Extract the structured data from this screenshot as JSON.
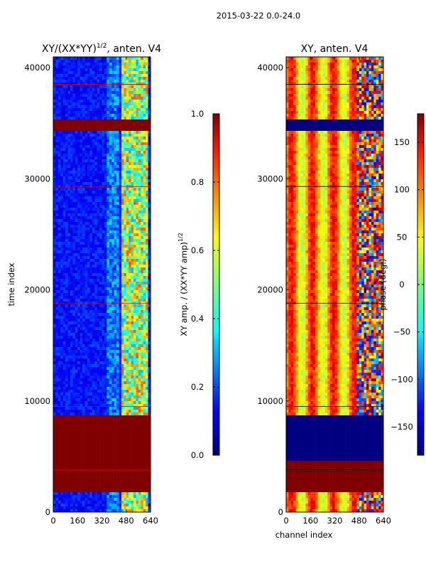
{
  "suptitle": "2015-03-22 0.0-24.0",
  "chart_data": [
    {
      "type": "heatmap",
      "id": "amp",
      "title": "XY/(XX*YY)",
      "title_sup": "1/2",
      "title_suffix": ", anten. V4",
      "xlabel": "",
      "ylabel": "time index",
      "xlim": [
        0,
        640
      ],
      "ylim": [
        0,
        40960
      ],
      "xticks": [
        0,
        160,
        320,
        480,
        640
      ],
      "yticks": [
        0,
        10000,
        20000,
        30000,
        40000
      ],
      "flagged_rows": [
        [
          35300,
          34200
        ],
        [
          8600,
          1700
        ]
      ],
      "description": "channel vs time amplitude ratio; mostly low (~0.1) with higher values (0.5-0.8) in channels 440-640; fully flagged rows show 1.0",
      "colorbar": {
        "label": "XY amp. / (XX*YY amp)",
        "label_sup": "1/2",
        "range": [
          0.0,
          1.0
        ],
        "ticks": [
          "0.0",
          "0.2",
          "0.4",
          "0.6",
          "0.8",
          "1.0"
        ],
        "tick_values": [
          0.0,
          0.2,
          0.4,
          0.6,
          0.8,
          1.0
        ],
        "colormap": "jet"
      }
    },
    {
      "type": "heatmap",
      "id": "phase",
      "title": "XY, anten. V4",
      "xlabel": "channel index",
      "ylabel": "",
      "xlim": [
        0,
        640
      ],
      "ylim": [
        0,
        40960
      ],
      "xticks": [
        0,
        160,
        320,
        480,
        640
      ],
      "yticks": [
        0,
        10000,
        20000,
        30000,
        40000
      ],
      "flagged_rows": [
        [
          35300,
          34200
        ],
        [
          8600,
          1700
        ]
      ],
      "description": "channel vs time phase; mostly 60-180 deg (yellow/red) vertical stripes, scattered blue regions in channels 480-640",
      "colorbar": {
        "label": "phase (deg.)",
        "range": [
          -180,
          180
        ],
        "ticks": [
          "150",
          "100",
          "50",
          "0",
          "−50",
          "−100",
          "−150"
        ],
        "tick_values": [
          150,
          100,
          50,
          0,
          -50,
          -100,
          -150
        ],
        "colormap": "jet"
      }
    }
  ]
}
